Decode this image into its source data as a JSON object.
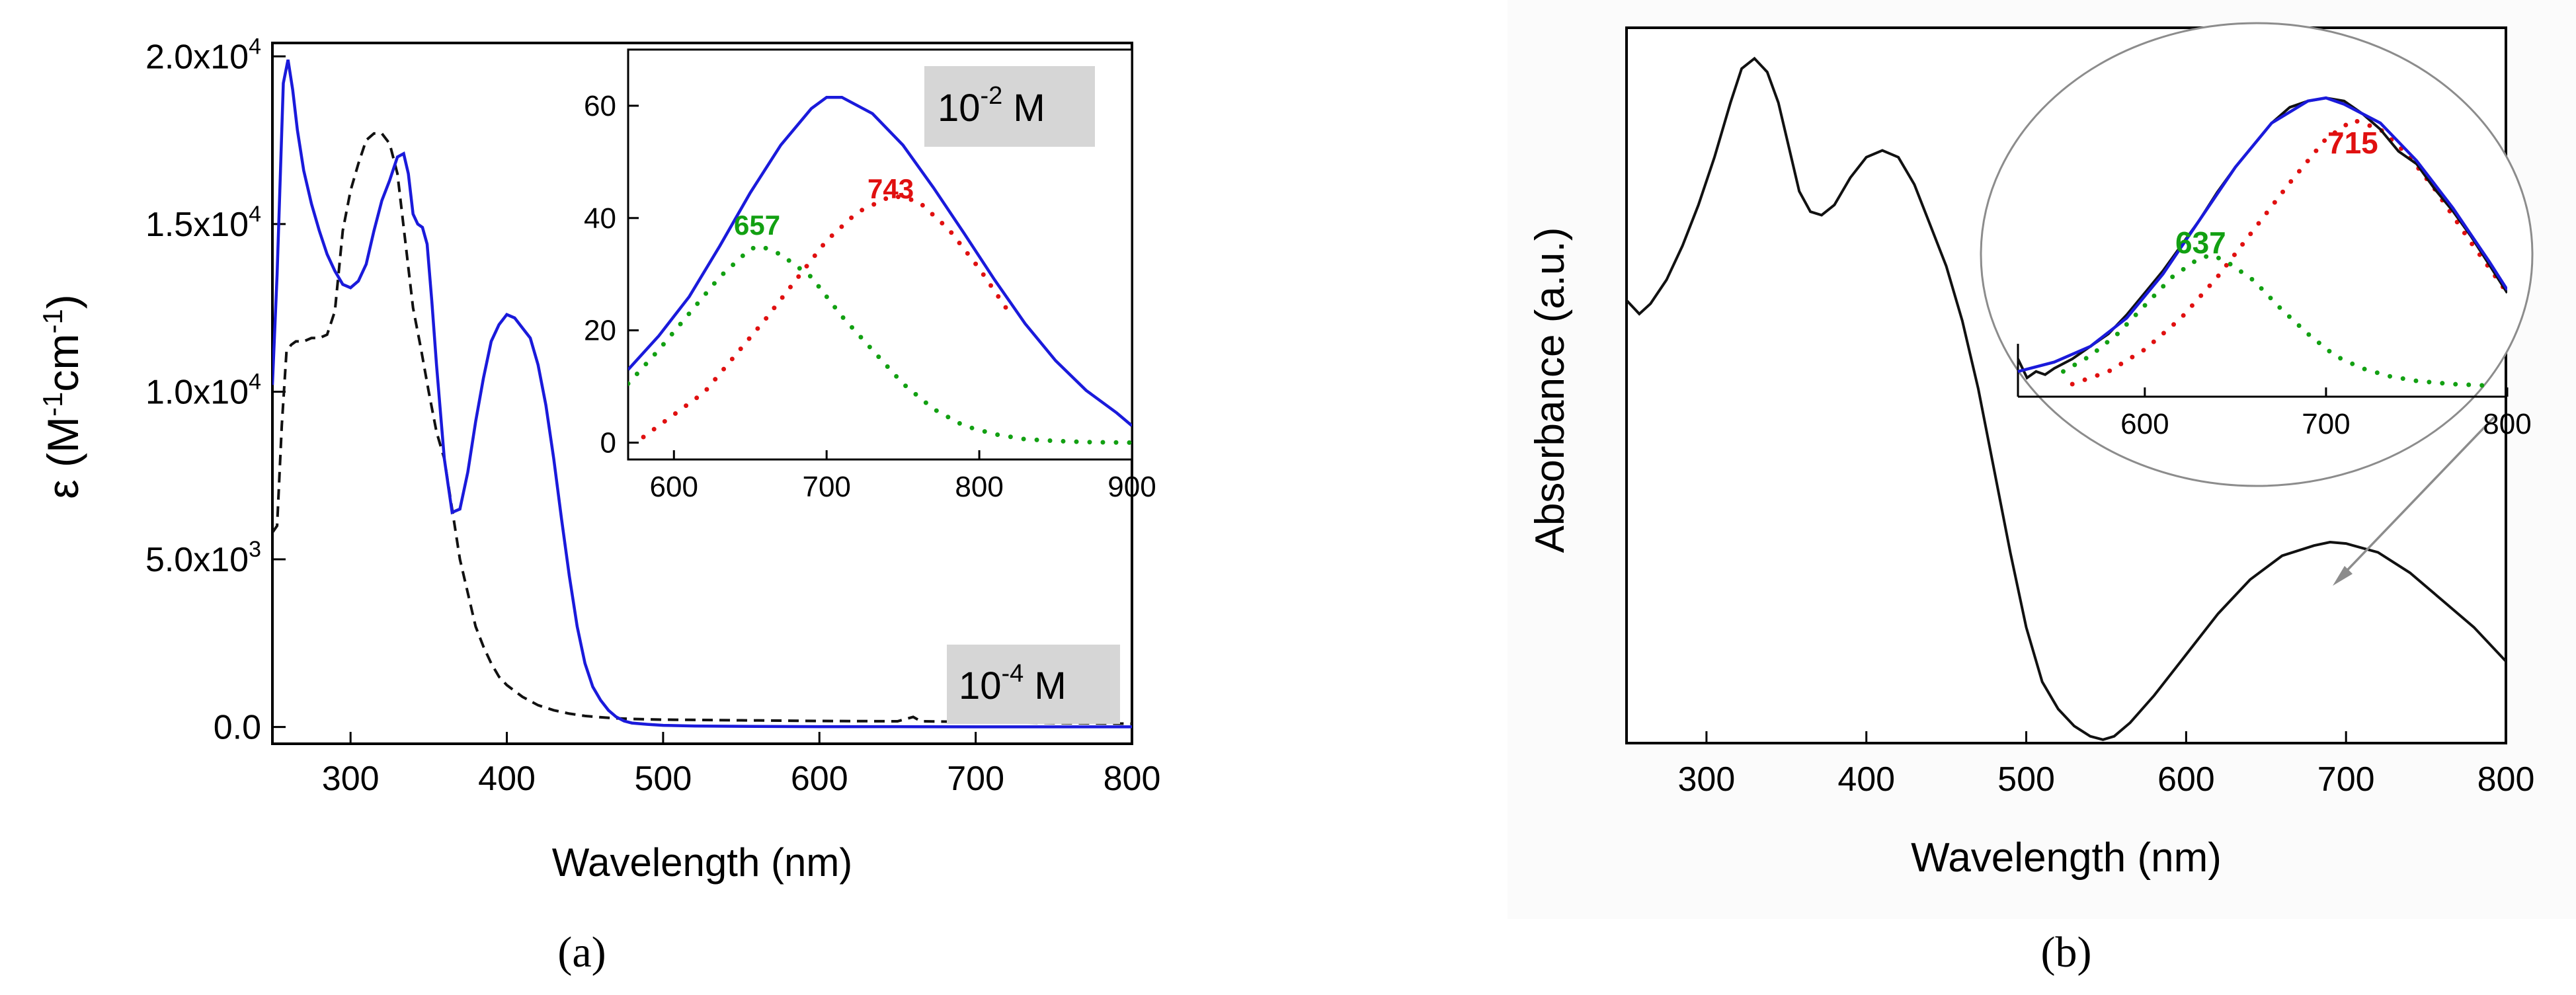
{
  "chart_data": [
    {
      "panel": "(a)",
      "type": "line",
      "xlabel": "Wavelength (nm)",
      "ylabel": "ε (M-1cm-1)",
      "ylabel_parts": {
        "symbol": "ε",
        "open": "(M",
        "sup1": "-1",
        "mid": "cm",
        "sup2": "-1",
        "close": ")"
      },
      "xlim": [
        250,
        800
      ],
      "ylim": [
        -500,
        20400
      ],
      "xticks": [
        300,
        400,
        500,
        600,
        700,
        800
      ],
      "yticks": [
        {
          "value": 0,
          "label": "0.0"
        },
        {
          "value": 5000,
          "label": "5.0x10",
          "exp": "3"
        },
        {
          "value": 10000,
          "label": "1.0x10",
          "exp": "4"
        },
        {
          "value": 15000,
          "label": "1.5x10",
          "exp": "4"
        },
        {
          "value": 20000,
          "label": "2.0x10",
          "exp": "4"
        }
      ],
      "annotation": {
        "text": "10",
        "exp": "-4",
        "suffix": " M"
      },
      "series": [
        {
          "name": "solid (blue)",
          "color": "#1a1adb",
          "style": "solid",
          "x": [
            250,
            253,
            257,
            260,
            263,
            266,
            270,
            275,
            280,
            285,
            290,
            295,
            300,
            305,
            310,
            315,
            320,
            325,
            330,
            334,
            337,
            340,
            343,
            346,
            349,
            352,
            355,
            360,
            365,
            370,
            375,
            380,
            385,
            390,
            395,
            400,
            405,
            410,
            415,
            420,
            425,
            430,
            435,
            440,
            445,
            450,
            455,
            460,
            465,
            470,
            475,
            480,
            490,
            500,
            520,
            550,
            600,
            650,
            700,
            750,
            800
          ],
          "y": [
            10200,
            13500,
            19200,
            19900,
            19000,
            17800,
            16600,
            15600,
            14800,
            14100,
            13600,
            13200,
            13100,
            13300,
            13800,
            14800,
            15700,
            16300,
            17000,
            17100,
            16500,
            15300,
            15000,
            14900,
            14400,
            12700,
            10800,
            8000,
            6400,
            6500,
            7600,
            9100,
            10400,
            11500,
            12000,
            12300,
            12200,
            11900,
            11600,
            10800,
            9600,
            8000,
            6200,
            4500,
            3000,
            1900,
            1200,
            800,
            500,
            300,
            180,
            120,
            80,
            50,
            30,
            20,
            10,
            10,
            5,
            5,
            5
          ]
        },
        {
          "name": "dashed (black)",
          "color": "#111111",
          "style": "dashed",
          "x": [
            250,
            253,
            256,
            259,
            262,
            265,
            270,
            275,
            280,
            285,
            290,
            295,
            300,
            305,
            310,
            315,
            320,
            325,
            330,
            335,
            340,
            345,
            350,
            355,
            360,
            365,
            370,
            375,
            380,
            385,
            390,
            395,
            400,
            410,
            420,
            430,
            440,
            450,
            460,
            470,
            480,
            500,
            550,
            600,
            650,
            660,
            665,
            700,
            750,
            800
          ],
          "y": [
            5800,
            6000,
            9000,
            11200,
            11400,
            11500,
            11500,
            11600,
            11600,
            11700,
            12400,
            14800,
            16000,
            16800,
            17500,
            17700,
            17700,
            17400,
            16500,
            14500,
            12500,
            11300,
            10000,
            8800,
            8000,
            6500,
            5000,
            4000,
            3000,
            2400,
            1900,
            1500,
            1250,
            900,
            650,
            500,
            400,
            330,
            290,
            260,
            240,
            220,
            200,
            180,
            170,
            300,
            170,
            150,
            120,
            100
          ]
        }
      ]
    },
    {
      "panel": "(a) inset",
      "type": "line",
      "xlim": [
        570,
        900
      ],
      "ylim": [
        -3,
        70
      ],
      "xticks": [
        600,
        700,
        800,
        900
      ],
      "yticks": [
        0,
        20,
        40,
        60
      ],
      "annotation": {
        "text": "10",
        "exp": "-2",
        "suffix": " M"
      },
      "peak_labels": [
        {
          "text": "657",
          "color": "#12a012"
        },
        {
          "text": "743",
          "color": "#e01010"
        }
      ],
      "series": [
        {
          "name": "solid (blue)",
          "color": "#1a1adb",
          "style": "solid",
          "x": [
            570,
            590,
            610,
            630,
            650,
            670,
            690,
            700,
            710,
            730,
            750,
            770,
            790,
            810,
            830,
            850,
            870,
            890,
            900
          ],
          "y": [
            13,
            19,
            26,
            35,
            44.5,
            53,
            59.5,
            61.5,
            61.5,
            58.6,
            53,
            45.4,
            37.3,
            29,
            21.2,
            14.6,
            9.3,
            5.3,
            3
          ]
        },
        {
          "name": "Gaussian 657 (green dotted)",
          "color": "#12a012",
          "style": "dotted",
          "x": [
            570,
            590,
            610,
            630,
            650,
            657,
            670,
            690,
            710,
            730,
            750,
            770,
            790,
            810,
            830,
            850,
            870,
            900
          ],
          "y": [
            10.5,
            16.5,
            23,
            29.5,
            34.5,
            35,
            33.5,
            29.5,
            22.5,
            16.5,
            10.5,
            6,
            3,
            1.5,
            0.6,
            0.3,
            0.1,
            0
          ]
        },
        {
          "name": "Gaussian 743 (red dotted)",
          "color": "#e01010",
          "style": "dotted",
          "x": [
            580,
            600,
            620,
            640,
            660,
            680,
            700,
            720,
            743,
            760,
            780,
            800,
            820
          ],
          "y": [
            1,
            5,
            9,
            15.5,
            22,
            29,
            36,
            41,
            44,
            43,
            38,
            31,
            23
          ]
        }
      ]
    },
    {
      "panel": "(b)",
      "type": "line",
      "xlabel": "Wavelength (nm)",
      "ylabel": "Absorbance (a.u.)",
      "xlim": [
        250,
        800
      ],
      "ylim": [
        0,
        1.05
      ],
      "xticks": [
        300,
        400,
        500,
        600,
        700,
        800
      ],
      "series": [
        {
          "name": "black",
          "color": "#111111",
          "style": "solid",
          "x": [
            250,
            258,
            265,
            275,
            285,
            295,
            305,
            315,
            322,
            330,
            338,
            345,
            352,
            358,
            365,
            372,
            380,
            390,
            400,
            410,
            420,
            430,
            440,
            450,
            460,
            470,
            480,
            490,
            500,
            510,
            520,
            530,
            540,
            548,
            555,
            565,
            580,
            600,
            620,
            640,
            660,
            680,
            690,
            700,
            720,
            740,
            760,
            780,
            800
          ],
          "y": [
            0.65,
            0.63,
            0.645,
            0.68,
            0.73,
            0.79,
            0.86,
            0.94,
            0.99,
            1.005,
            0.985,
            0.94,
            0.87,
            0.81,
            0.78,
            0.775,
            0.79,
            0.83,
            0.86,
            0.87,
            0.86,
            0.82,
            0.76,
            0.7,
            0.62,
            0.52,
            0.4,
            0.28,
            0.17,
            0.09,
            0.05,
            0.025,
            0.01,
            0.005,
            0.01,
            0.03,
            0.07,
            0.13,
            0.19,
            0.24,
            0.275,
            0.29,
            0.295,
            0.293,
            0.28,
            0.25,
            0.21,
            0.17,
            0.12
          ]
        }
      ]
    },
    {
      "panel": "(b) inset",
      "type": "line",
      "xlim": [
        530,
        800
      ],
      "ylim": [
        -3,
        100
      ],
      "xticks": [
        600,
        700,
        800
      ],
      "peak_labels": [
        {
          "text": "637",
          "color": "#12a012"
        },
        {
          "text": "715",
          "color": "#e01010"
        }
      ],
      "series": [
        {
          "name": "fit (blue)",
          "color": "#1a1adb",
          "style": "solid",
          "x": [
            530,
            550,
            570,
            590,
            610,
            630,
            650,
            670,
            690,
            700,
            710,
            730,
            750,
            770,
            790,
            800
          ],
          "y": [
            5,
            8,
            13,
            22,
            36,
            53,
            70,
            84,
            91,
            92,
            90,
            84,
            72,
            57,
            40,
            31
          ]
        },
        {
          "name": "data (black)",
          "color": "#111111",
          "style": "solid",
          "x": [
            530,
            535,
            540,
            545,
            550,
            560,
            570,
            580,
            590,
            600,
            610,
            620,
            630,
            640,
            650,
            660,
            670,
            680,
            690,
            700,
            710,
            720,
            730,
            740,
            750,
            760,
            770,
            780,
            790,
            800
          ],
          "y": [
            9,
            3,
            5,
            4,
            6,
            9,
            13,
            17,
            23,
            30,
            37,
            45,
            53,
            62,
            70,
            77,
            84,
            89,
            91,
            92,
            91,
            87,
            82,
            75,
            71,
            63,
            56,
            48,
            39,
            30
          ]
        },
        {
          "name": "Gaussian 637 (green dotted)",
          "color": "#12a012",
          "style": "dotted",
          "x": [
            555,
            570,
            585,
            600,
            615,
            630,
            637,
            645,
            660,
            675,
            690,
            705,
            720,
            735,
            750,
            770,
            790
          ],
          "y": [
            5,
            10,
            17,
            26,
            35,
            41,
            42,
            40,
            34,
            25,
            17,
            10,
            6,
            3.5,
            2,
            1,
            0.5
          ]
        },
        {
          "name": "Gaussian 715 (red dotted)",
          "color": "#e01010",
          "style": "dotted",
          "x": [
            560,
            580,
            600,
            620,
            640,
            660,
            680,
            700,
            715,
            730,
            745,
            760,
            780,
            800
          ],
          "y": [
            1,
            5,
            12,
            22,
            35,
            50,
            65,
            79,
            85,
            82,
            74,
            63,
            46,
            30
          ]
        }
      ]
    }
  ],
  "labels": {
    "panel_a": "(a)",
    "panel_b": "(b)"
  }
}
